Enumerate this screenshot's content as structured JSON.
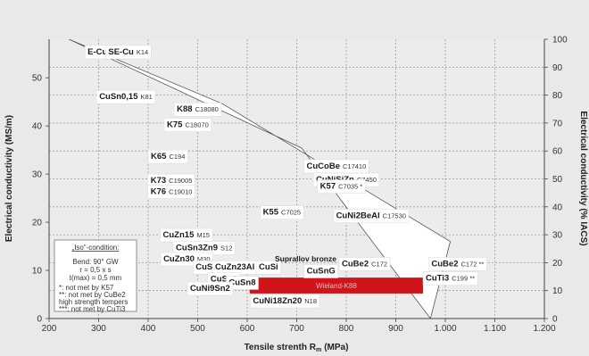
{
  "chart_data": {
    "type": "scatter",
    "xlabel": "Tensile strenth R",
    "xlabel_sub": "m",
    "xlabel_unit": "(MPa)",
    "ylabel_left": "Electrical conductivity (MS/m)",
    "ylabel_right": "Electrical conductivity (% IACS)",
    "xlim": [
      200,
      1200
    ],
    "ylim_left": [
      0,
      58
    ],
    "ylim_right": [
      0,
      100
    ],
    "x_ticks": [
      "200",
      "300",
      "400",
      "500",
      "600",
      "700",
      "800",
      "900",
      "1.000",
      "1.100",
      "1.200"
    ],
    "y_ticks_left": [
      "0",
      "10",
      "20",
      "30",
      "40",
      "50"
    ],
    "y_ticks_right": [
      "0",
      "10",
      "20",
      "30",
      "40",
      "50",
      "60",
      "70",
      "80",
      "90",
      "100"
    ],
    "grid": true,
    "band": {
      "upper_edge": [
        [
          240,
          58
        ],
        [
          550,
          44.6
        ],
        [
          1010,
          16
        ]
      ],
      "lower_edge": [
        [
          240,
          58
        ],
        [
          710,
          35.4
        ],
        [
          970,
          0
        ]
      ]
    },
    "highlight": {
      "label": "Wieland-K88",
      "x_range": [
        605,
        955
      ],
      "y_range": [
        5.2,
        8.5
      ],
      "color": "#d0141b"
    },
    "materials": [
      {
        "name": "E-Cu",
        "code": "K",
        "x": 305,
        "y": 55.5
      },
      {
        "name": "SE-Cu",
        "code": "K14",
        "x": 360,
        "y": 55.5
      },
      {
        "name": "CuSn0,15",
        "code": "K81",
        "x": 355,
        "y": 46.2
      },
      {
        "name": "K88",
        "code": "C18080",
        "x": 500,
        "y": 43.6
      },
      {
        "name": "K75",
        "code": "C18070",
        "x": 480,
        "y": 40.4
      },
      {
        "name": "K65",
        "code": "C194",
        "x": 440,
        "y": 33.8
      },
      {
        "name": "K73",
        "code": "C19005",
        "x": 447,
        "y": 28.8
      },
      {
        "name": "K76",
        "code": "C19010",
        "x": 447,
        "y": 26.5
      },
      {
        "name": "CuCoBe",
        "code": "C17410",
        "x": 780,
        "y": 31.8
      },
      {
        "name": "CuNiSiZn",
        "code": "C7450",
        "x": 800,
        "y": 29.0
      },
      {
        "name": "K57",
        "code": "C7035 *",
        "x": 790,
        "y": 27.6
      },
      {
        "name": "K55",
        "code": "C7025",
        "x": 670,
        "y": 22.2
      },
      {
        "name": "CuNi2BeAl",
        "code": "C17530",
        "x": 850,
        "y": 21.5
      },
      {
        "name": "CuZn15",
        "code": "M15",
        "x": 477,
        "y": 17.5
      },
      {
        "name": "CuSn3Zn9",
        "code": "S12",
        "x": 513,
        "y": 14.8
      },
      {
        "name": "CuZn30",
        "code": "M30",
        "x": 478,
        "y": 12.5
      },
      {
        "name": "CuSn4",
        "code": "",
        "x": 523,
        "y": 10.8
      },
      {
        "name": "CuZn23Al",
        "code": "",
        "x": 575,
        "y": 10.8
      },
      {
        "name": "CuSi",
        "code": "",
        "x": 643,
        "y": 10.8
      },
      {
        "name": "Suprallov bronze",
        "code": "",
        "x": 718,
        "y": 12.5
      },
      {
        "name": "CuSnG",
        "code": "",
        "x": 749,
        "y": 10.0
      },
      {
        "name": "CuSn6",
        "code": "",
        "x": 553,
        "y": 8.3
      },
      {
        "name": "CuSn8",
        "code": "",
        "x": 590,
        "y": 7.6
      },
      {
        "name": "CuNi9Sn2",
        "code": "",
        "x": 525,
        "y": 6.4
      },
      {
        "name": "CuNi18Zn20",
        "code": "N18",
        "x": 676,
        "y": 3.8
      },
      {
        "name": "CuBe2",
        "code": "C172",
        "x": 837,
        "y": 11.5
      },
      {
        "name": "CuBe2",
        "code": "C172 **",
        "x": 1025,
        "y": 11.5
      },
      {
        "name": "CuTi3",
        "code": "C199 **",
        "x": 1010,
        "y": 8.5
      }
    ],
    "legend": {
      "title": "„Iso“-condition:",
      "lines": [
        "Bend: 90° GW",
        "r = 0,5 x s",
        "t(max) = 0,5 mm"
      ],
      "notes": [
        "*: not met by K57",
        "**: not met by CuBe2",
        "high strength tempers",
        "***: not met by CuTi3"
      ]
    }
  }
}
